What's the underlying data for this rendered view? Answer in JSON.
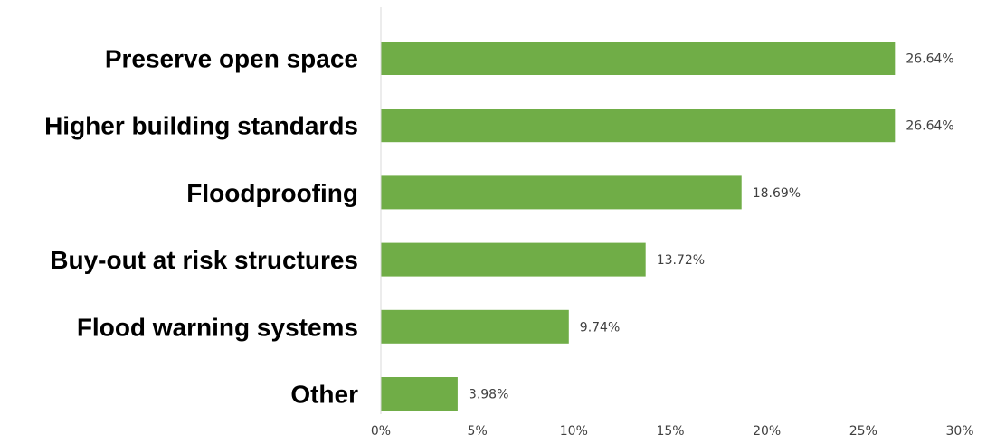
{
  "chart_data": {
    "type": "bar",
    "orientation": "horizontal",
    "title": "",
    "xlabel": "",
    "ylabel": "",
    "categories": [
      "Preserve open space",
      "Higher building standards",
      "Floodproofing",
      "Buy-out at risk structures",
      "Flood warning systems",
      "Other"
    ],
    "values": [
      26.64,
      26.64,
      18.69,
      13.72,
      9.74,
      3.98
    ],
    "value_labels": [
      "26.64%",
      "26.64%",
      "18.69%",
      "13.72%",
      "9.74%",
      "3.98%"
    ],
    "xlim": [
      0,
      30
    ],
    "xticks": [
      0,
      5,
      10,
      15,
      20,
      25,
      30
    ],
    "xtick_labels": [
      "0%",
      "5%",
      "10%",
      "15%",
      "20%",
      "25%",
      "30%"
    ],
    "bar_color": "#70AD47",
    "axis_color": "#D9D9D9",
    "grid": false,
    "legend": "none"
  }
}
